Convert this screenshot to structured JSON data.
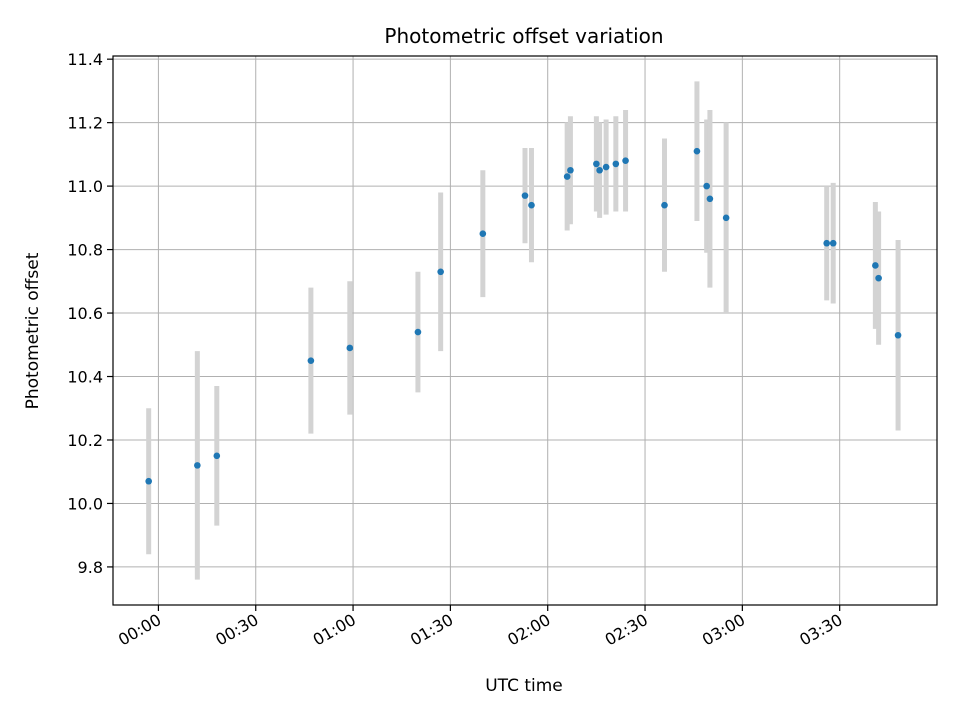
{
  "chart_data": {
    "type": "scatter",
    "title": "Photometric offset variation",
    "xlabel": "UTC time",
    "ylabel": "Photometric offset",
    "x_unit": "UTC HH:MM",
    "xlim": [
      "-00:14",
      "04:00"
    ],
    "ylim": [
      9.68,
      11.41
    ],
    "x_ticks": [
      "00:00",
      "00:30",
      "01:00",
      "01:30",
      "02:00",
      "02:30",
      "03:00",
      "03:30"
    ],
    "y_ticks": [
      9.8,
      10.0,
      10.2,
      10.4,
      10.6,
      10.8,
      11.0,
      11.2,
      11.4
    ],
    "grid": true,
    "colors": {
      "point": "#1f77b4",
      "errorbar": "#d3d3d3",
      "grid": "#b0b0b0"
    },
    "series": [
      {
        "points": [
          {
            "x": "-00:03",
            "y": 10.07,
            "err": 0.23
          },
          {
            "x": "00:12",
            "y": 10.12,
            "err": 0.36
          },
          {
            "x": "00:18",
            "y": 10.15,
            "err": 0.22
          },
          {
            "x": "00:47",
            "y": 10.45,
            "err": 0.23
          },
          {
            "x": "00:59",
            "y": 10.49,
            "err": 0.21
          },
          {
            "x": "01:20",
            "y": 10.54,
            "err": 0.19
          },
          {
            "x": "01:27",
            "y": 10.73,
            "err": 0.25
          },
          {
            "x": "01:40",
            "y": 10.85,
            "err": 0.2
          },
          {
            "x": "01:53",
            "y": 10.97,
            "err": 0.15
          },
          {
            "x": "01:55",
            "y": 10.94,
            "err": 0.18
          },
          {
            "x": "02:06",
            "y": 11.03,
            "err": 0.17
          },
          {
            "x": "02:07",
            "y": 11.05,
            "err": 0.17
          },
          {
            "x": "02:15",
            "y": 11.07,
            "err": 0.15
          },
          {
            "x": "02:16",
            "y": 11.05,
            "err": 0.15
          },
          {
            "x": "02:18",
            "y": 11.06,
            "err": 0.15
          },
          {
            "x": "02:21",
            "y": 11.07,
            "err": 0.15
          },
          {
            "x": "02:24",
            "y": 11.08,
            "err": 0.16
          },
          {
            "x": "02:36",
            "y": 10.94,
            "err": 0.21
          },
          {
            "x": "02:46",
            "y": 11.11,
            "err": 0.22
          },
          {
            "x": "02:49",
            "y": 11.0,
            "err": 0.21
          },
          {
            "x": "02:50",
            "y": 10.96,
            "err": 0.28
          },
          {
            "x": "02:55",
            "y": 10.9,
            "err": 0.3
          },
          {
            "x": "03:26",
            "y": 10.82,
            "err": 0.18
          },
          {
            "x": "03:28",
            "y": 10.82,
            "err": 0.19
          },
          {
            "x": "03:41",
            "y": 10.75,
            "err": 0.2
          },
          {
            "x": "03:42",
            "y": 10.71,
            "err": 0.21
          },
          {
            "x": "03:48",
            "y": 10.53,
            "err": 0.3
          }
        ]
      }
    ]
  }
}
